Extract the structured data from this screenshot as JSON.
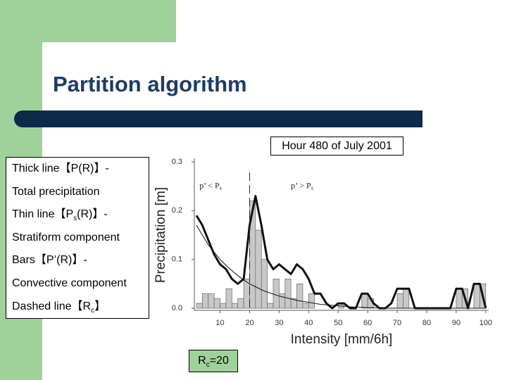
{
  "title": "Partition algorithm",
  "caption": "Hour 480 of July 2001",
  "notes": [
    [
      "Thick line【P(R)】-"
    ],
    [
      "Total precipitation"
    ],
    [
      "Thin line【P",
      "s",
      "(R)】-"
    ],
    [
      "Stratiform component"
    ],
    [
      "Bars【P’(R)】-"
    ],
    [
      "Convective component"
    ],
    [
      "Dashed line【R",
      "c",
      "】"
    ]
  ],
  "rc_label": [
    "R",
    "c",
    "=20"
  ],
  "chart_data": {
    "type": "histogram",
    "xlabel": "Intensity [mm/6h]",
    "ylabel": "Precipitation [m]",
    "bins": [
      2,
      4,
      6,
      8,
      10,
      12,
      14,
      16,
      18,
      20,
      22,
      24,
      26,
      28,
      30,
      32,
      34,
      36,
      38,
      40,
      42,
      44,
      46,
      48,
      50,
      52,
      54,
      56,
      58,
      60,
      62,
      64,
      66,
      68,
      70,
      72,
      74,
      76,
      78,
      80,
      82,
      84,
      86,
      88,
      90,
      92,
      94,
      96,
      98,
      100
    ],
    "counts": [
      0.01,
      0.03,
      0.03,
      0.02,
      0.01,
      0.04,
      0.01,
      0.02,
      0.06,
      0.22,
      0.16,
      0.1,
      0.01,
      0.06,
      0.03,
      0.06,
      0.02,
      0.05,
      0.01,
      0.03,
      0,
      0,
      0,
      0,
      0.01,
      0,
      0,
      0,
      0.03,
      0.02,
      0,
      0,
      0,
      0,
      0.03,
      0.04,
      0,
      0,
      0,
      0,
      0,
      0,
      0,
      0,
      0.04,
      0.04,
      0,
      0.05,
      0.05
    ],
    "bar_color": "#c8c8c8",
    "lines": [
      {
        "color": "#111111",
        "width": 3,
        "x": [
          2,
          4,
          6,
          8,
          10,
          12,
          14,
          16,
          18,
          20,
          22,
          24,
          26,
          28,
          30,
          32,
          34,
          36,
          38,
          40,
          42,
          44,
          46,
          48,
          50,
          52,
          54,
          56,
          58,
          60,
          62,
          64,
          66,
          68,
          70,
          72,
          74,
          76,
          78,
          80,
          82,
          84,
          86,
          88,
          90,
          92,
          94,
          96,
          98,
          100
        ],
        "values": [
          0.19,
          0.17,
          0.14,
          0.11,
          0.09,
          0.08,
          0.06,
          0.05,
          0.06,
          0.17,
          0.23,
          0.17,
          0.1,
          0.08,
          0.09,
          0.08,
          0.07,
          0.09,
          0.08,
          0.06,
          0.03,
          0.03,
          0.01,
          0,
          0.01,
          0.01,
          0,
          0,
          0.03,
          0.03,
          0.01,
          0,
          0,
          0.01,
          0.04,
          0.04,
          0.04,
          0,
          0,
          0,
          0,
          0,
          0,
          0,
          0.04,
          0.04,
          0,
          0.05,
          0.05,
          0
        ]
      },
      {
        "color": "#111111",
        "width": 1,
        "x": [
          2,
          4,
          6,
          8,
          10,
          12,
          14,
          16,
          18,
          20,
          22,
          24,
          26,
          28,
          30,
          32,
          34,
          36,
          38,
          40,
          42,
          44,
          46,
          48,
          50,
          52,
          54,
          56,
          58,
          60,
          62,
          64,
          66,
          68,
          70,
          72,
          74,
          76,
          78,
          80,
          82,
          84,
          86,
          88,
          90,
          92,
          94,
          96,
          98,
          100
        ],
        "values": [
          0.17,
          0.15,
          0.13,
          0.115,
          0.1,
          0.088,
          0.077,
          0.067,
          0.058,
          0.05,
          0.044,
          0.038,
          0.033,
          0.029,
          0.025,
          0.022,
          0.019,
          0.016,
          0.014,
          0.012,
          0.01,
          0.008,
          0.007,
          0.006,
          0.005,
          0.004,
          0.003,
          0.002,
          0.002,
          0.001,
          0.001,
          0,
          0,
          0,
          0,
          0,
          0,
          0,
          0,
          0,
          0,
          0,
          0,
          0,
          0,
          0,
          0,
          0,
          0,
          0
        ]
      }
    ],
    "rc": 20,
    "annotations": [
      {
        "text": "p’ < P",
        "sub": "s",
        "x": 3
      },
      {
        "text": "p’ > P",
        "sub": "s",
        "x": 34
      }
    ],
    "annotation_y": 0.25,
    "xlim": [
      2,
      101
    ],
    "ylim": [
      0,
      0.3
    ],
    "xticks": [
      10,
      20,
      30,
      40,
      50,
      60,
      70,
      80,
      90,
      100
    ],
    "yticks": [
      {
        "value": 0,
        "label": "0.0"
      },
      0.1,
      0.2,
      0.3
    ]
  }
}
